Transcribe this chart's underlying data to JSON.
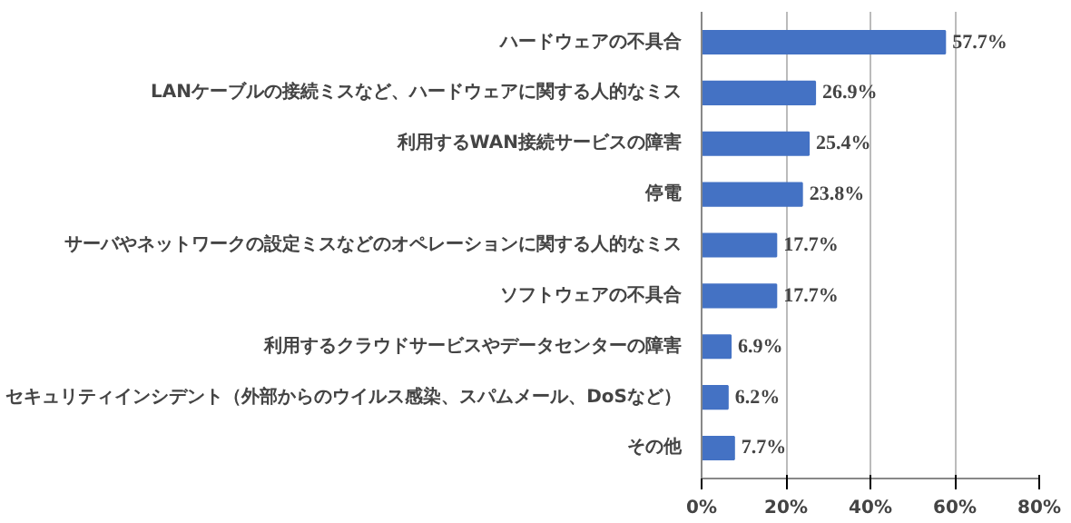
{
  "chart_data": {
    "type": "bar",
    "orientation": "horizontal",
    "categories": [
      "ハードウェアの不具合",
      "LANケーブルの接続ミスなど、ハードウェアに関する人的なミス",
      "利用するWAN接続サービスの障害",
      "停電",
      "サーバやネットワークの設定ミスなどのオペレーションに関する人的なミス",
      "ソフトウェアの不具合",
      "利用するクラウドサービスやデータセンターの障害",
      "セキュリティインシデント（外部からのウイルス感染、スパムメール、DoSなど）",
      "その他"
    ],
    "values": [
      57.7,
      26.9,
      25.4,
      23.8,
      17.7,
      17.7,
      6.9,
      6.2,
      7.7
    ],
    "value_labels": [
      "57.7%",
      "26.9%",
      "25.4%",
      "23.8%",
      "17.7%",
      "17.7%",
      "6.9%",
      "6.2%",
      "7.7%"
    ],
    "color": "#4472c4",
    "xlim": [
      0,
      80
    ],
    "xticks": [
      {
        "value": 0,
        "label": "0%"
      },
      {
        "value": 20,
        "label": "20%"
      },
      {
        "value": 40,
        "label": "40%"
      },
      {
        "value": 60,
        "label": "60%"
      },
      {
        "value": 80,
        "label": "80%"
      }
    ],
    "grid": "x"
  }
}
